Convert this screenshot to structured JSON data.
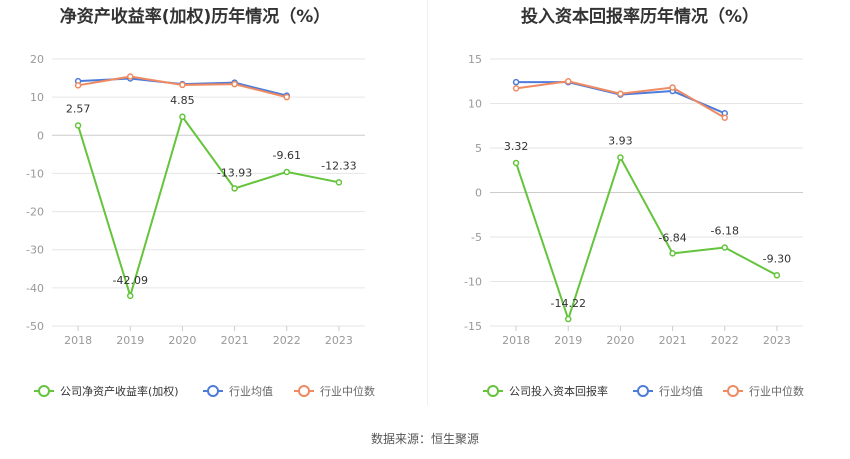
{
  "source_label": "数据来源：恒生聚源",
  "colors": {
    "company": "#64c43c",
    "industry_avg": "#4d7bdb",
    "industry_median": "#f08a60",
    "grid": "#e6e6e6",
    "axis": "#999999",
    "text": "#333333"
  },
  "chart_data": [
    {
      "type": "line",
      "title": "净资产收益率(加权)历年情况（%）",
      "categories": [
        "2018",
        "2019",
        "2020",
        "2021",
        "2022",
        "2023"
      ],
      "ylim": [
        -50,
        20
      ],
      "yticks": [
        20,
        10,
        0,
        -10,
        -20,
        -30,
        -40,
        -50
      ],
      "grid": true,
      "legend_position": "bottom-left",
      "series": [
        {
          "name": "公司净资产收益率(加权)",
          "key": "company",
          "values": [
            2.57,
            -42.09,
            4.85,
            -13.93,
            -9.61,
            -12.33
          ],
          "labels": [
            "2.57",
            "-42.09",
            "4.85",
            "-13.93",
            "-9.61",
            "-12.33"
          ]
        },
        {
          "name": "行业均值",
          "key": "industry_avg",
          "values": [
            14.2,
            14.9,
            13.4,
            13.8,
            10.4,
            null
          ]
        },
        {
          "name": "行业中位数",
          "key": "industry_median",
          "values": [
            13.1,
            15.4,
            13.2,
            13.4,
            10.0,
            null
          ]
        }
      ]
    },
    {
      "type": "line",
      "title": "投入资本回报率历年情况（%）",
      "categories": [
        "2018",
        "2019",
        "2020",
        "2021",
        "2022",
        "2023"
      ],
      "ylim": [
        -15,
        15
      ],
      "yticks": [
        15,
        10,
        5,
        0,
        -5,
        -10,
        -15
      ],
      "grid": true,
      "legend_position": "bottom-left",
      "series": [
        {
          "name": "公司投入资本回报率",
          "key": "company",
          "values": [
            3.32,
            -14.22,
            3.93,
            -6.84,
            -6.18,
            -9.3
          ],
          "labels": [
            "3.32",
            "-14.22",
            "3.93",
            "-6.84",
            "-6.18",
            "-9.30"
          ]
        },
        {
          "name": "行业均值",
          "key": "industry_avg",
          "values": [
            12.4,
            12.4,
            11.0,
            11.4,
            8.9,
            null
          ]
        },
        {
          "name": "行业中位数",
          "key": "industry_median",
          "values": [
            11.7,
            12.5,
            11.1,
            11.8,
            8.4,
            null
          ]
        }
      ]
    }
  ]
}
